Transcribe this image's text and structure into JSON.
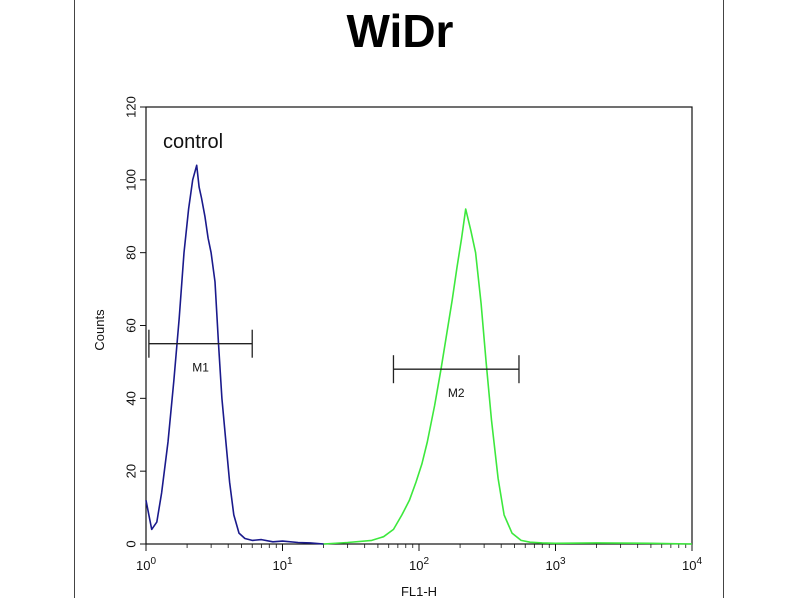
{
  "chart_data": {
    "type": "line",
    "title": "WiDr",
    "xlabel": "FL1-H",
    "ylabel": "Counts",
    "x_scale": "log",
    "xlim": [
      1,
      10000
    ],
    "ylim": [
      0,
      120
    ],
    "x_ticks": [
      {
        "base": "10",
        "exp": "0"
      },
      {
        "base": "10",
        "exp": "1"
      },
      {
        "base": "10",
        "exp": "2"
      },
      {
        "base": "10",
        "exp": "3"
      },
      {
        "base": "10",
        "exp": "4"
      }
    ],
    "y_ticks": [
      "0",
      "20",
      "40",
      "60",
      "80",
      "100",
      "120"
    ],
    "annotation": "control",
    "grid": false,
    "series": [
      {
        "color": "#1a1a8c",
        "x": [
          1,
          1.1,
          1.2,
          1.3,
          1.45,
          1.6,
          1.75,
          1.9,
          2.05,
          2.2,
          2.35,
          2.45,
          2.55,
          2.7,
          2.85,
          3.0,
          3.2,
          3.4,
          3.6,
          3.85,
          4.1,
          4.4,
          4.8,
          5.3,
          6,
          7,
          8.5,
          10,
          13,
          16,
          20
        ],
        "y": [
          12,
          4,
          6,
          14,
          28,
          45,
          62,
          80,
          92,
          100,
          104,
          98,
          95,
          90,
          84,
          80,
          72,
          55,
          40,
          28,
          17,
          8,
          3,
          1.5,
          1,
          1.2,
          0.6,
          0.8,
          0.4,
          0.3,
          0
        ]
      },
      {
        "color": "#3de83d",
        "x": [
          20,
          30,
          45,
          55,
          65,
          75,
          85,
          95,
          105,
          115,
          130,
          145,
          160,
          175,
          190,
          205,
          220,
          240,
          260,
          285,
          310,
          340,
          380,
          420,
          480,
          560,
          650,
          800,
          1000,
          2000,
          5000,
          10000
        ],
        "y": [
          0,
          0.4,
          1,
          2,
          4,
          8,
          12,
          17,
          22,
          28,
          38,
          48,
          58,
          67,
          76,
          84,
          92,
          86,
          80,
          66,
          50,
          34,
          18,
          8,
          3,
          1,
          0.5,
          0.3,
          0.2,
          0.3,
          0.2,
          0
        ]
      }
    ],
    "markers": [
      {
        "label": "M1",
        "x_start": 1.05,
        "x_end": 6.0,
        "y": 55
      },
      {
        "label": "M2",
        "x_start": 65,
        "x_end": 540,
        "y": 48
      }
    ]
  }
}
